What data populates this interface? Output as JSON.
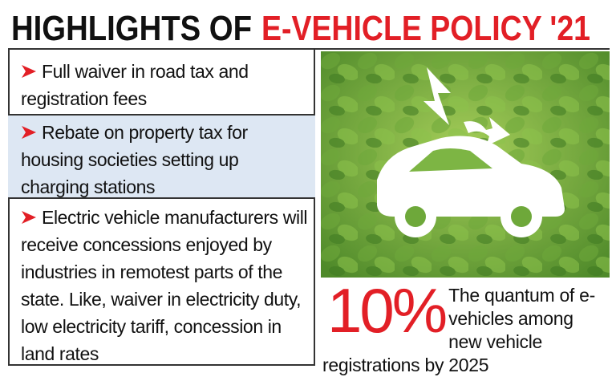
{
  "header": {
    "title_black": "HIGHLIGHTS OF",
    "title_red": "E-VEHICLE POLICY '21"
  },
  "points": [
    "Full waiver in road tax and registration fees",
    "Rebate on property tax for housing societies setting up charging stations",
    "Electric vehicle manufacturers will receive concessions enjoyed by industries in remotest parts of the state. Like, waiver in electricity duty, low electricity tariff, concession in land rates"
  ],
  "stat": {
    "figure": "10%",
    "text": "The quantum of e-vehicles among new vehicle registrations by 2025"
  }
}
